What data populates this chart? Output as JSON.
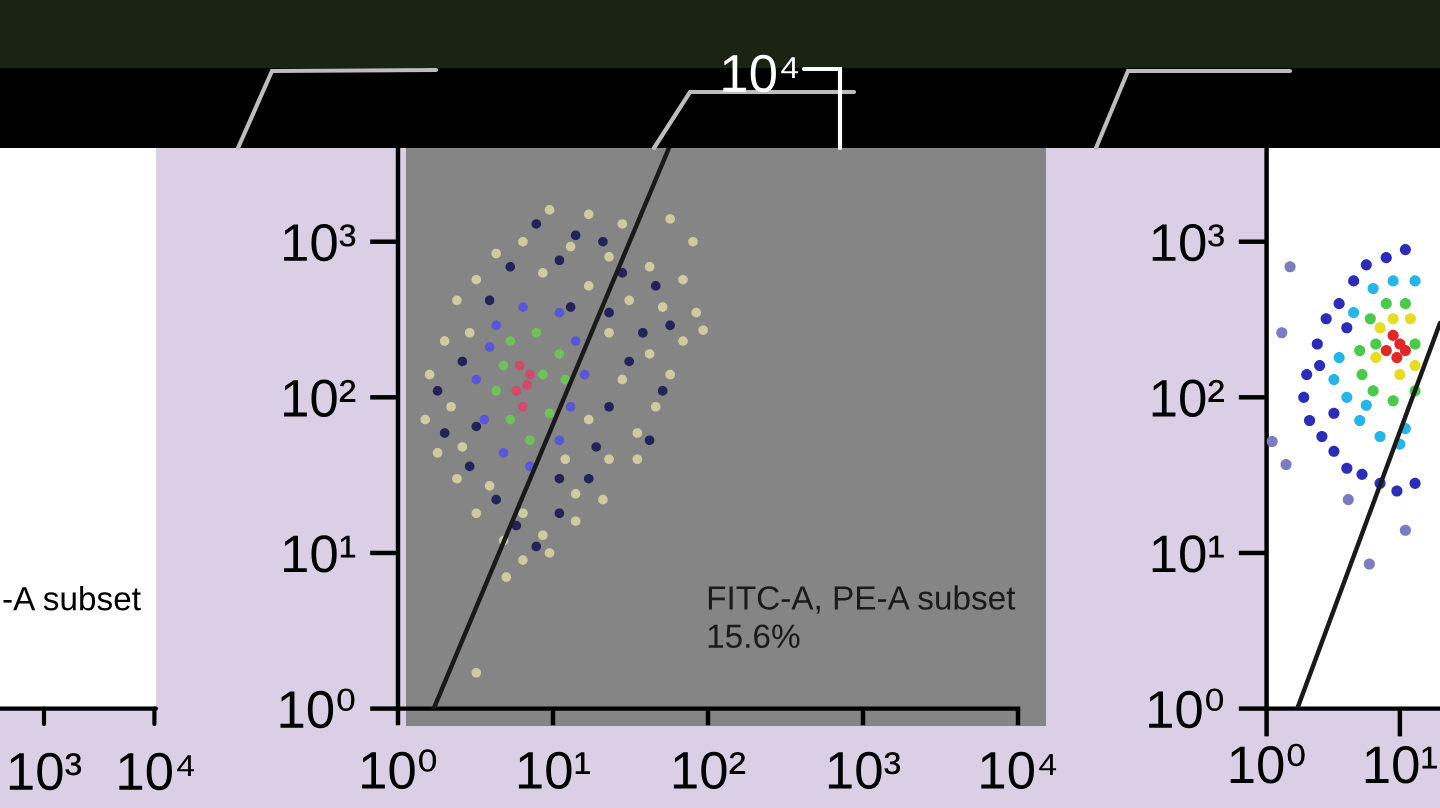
{
  "chart_data": [
    {
      "type": "other",
      "annotations": [
        "10⁴"
      ]
    },
    {
      "type": "other",
      "annotations": [
        "10³",
        "10⁴",
        "-A subset"
      ]
    },
    {
      "type": "scatter",
      "log": "xy",
      "xlim": [
        1,
        10000
      ],
      "ylim": [
        1,
        4000
      ],
      "xticks": [
        {
          "value": 1,
          "label": "10⁰"
        },
        {
          "value": 10,
          "label": "10¹"
        },
        {
          "value": 100,
          "label": "10²"
        },
        {
          "value": 1000,
          "label": "10³"
        },
        {
          "value": 10000,
          "label": "10⁴"
        }
      ],
      "yticks": [
        {
          "value": 1,
          "label": "10⁰"
        },
        {
          "value": 10,
          "label": "10¹"
        },
        {
          "value": 100,
          "label": "10²"
        },
        {
          "value": 1000,
          "label": "10³"
        }
      ],
      "annotations": [
        "FITC-A, PE-A subset\n15.6%"
      ],
      "series": [
        {
          "type": "scatter",
          "marker": "circle",
          "color": "#cfcba0",
          "x": [
            9.5,
            17,
            28,
            57,
            80,
            6.4,
            4.3,
            13,
            23,
            42,
            69,
            84,
            93,
            3.2,
            2.4,
            8.6,
            17,
            31,
            51,
            69,
            2.0,
            1.6,
            2.9,
            23,
            42,
            57,
            1.5,
            2.2,
            28,
            46,
            1.8,
            2.6,
            17,
            35,
            2.4,
            3.9,
            12,
            23,
            35,
            3.2,
            6.4,
            14,
            21,
            4.8,
            8.6,
            14,
            6.4,
            9.5,
            5.0,
            3.2
          ],
          "values": [
            1600,
            1500,
            1300,
            1400,
            1000,
            1000,
            840,
            930,
            800,
            690,
            570,
            350,
            270,
            570,
            420,
            630,
            520,
            420,
            380,
            230,
            230,
            140,
            260,
            260,
            190,
            140,
            72,
            87,
            130,
            87,
            44,
            48,
            72,
            59,
            30,
            27,
            40,
            40,
            40,
            18,
            18,
            24,
            22,
            12,
            13,
            16,
            9.0,
            10,
            7.0,
            1.7
          ]
        },
        {
          "type": "scatter",
          "marker": "circle",
          "color": "#23235a",
          "x": [
            7.8,
            14,
            21,
            5.3,
            11,
            28,
            46,
            3.9,
            13,
            23,
            57,
            2.6,
            38,
            31,
            1.8,
            51,
            3.2,
            23,
            2.0,
            42,
            2.9,
            19,
            4.3,
            11,
            17,
            5.8,
            11,
            7.8
          ],
          "values": [
            1300,
            1100,
            1000,
            690,
            760,
            630,
            520,
            420,
            380,
            350,
            290,
            170,
            260,
            170,
            110,
            110,
            65,
            87,
            59,
            53,
            36,
            48,
            22,
            30,
            30,
            15,
            18,
            11
          ]
        },
        {
          "type": "scatter",
          "marker": "circle",
          "color": "#5b56d6",
          "x": [
            4.3,
            6.4,
            11,
            14,
            16,
            13,
            11,
            7.1,
            4.8,
            3.6,
            3.2,
            3.9
          ],
          "values": [
            290,
            380,
            350,
            230,
            140,
            87,
            53,
            36,
            44,
            72,
            130,
            210
          ]
        },
        {
          "type": "scatter",
          "marker": "circle",
          "color": "#6fc25a",
          "x": [
            5.3,
            7.8,
            11,
            12,
            9.5,
            7.1,
            5.3,
            4.3,
            4.8,
            8.6
          ],
          "values": [
            230,
            260,
            190,
            130,
            79,
            53,
            72,
            110,
            160,
            140
          ]
        },
        {
          "type": "scatter",
          "marker": "circle",
          "color": "#cf4b6e",
          "x": [
            6.1,
            6.8,
            6.4,
            5.8,
            7.1
          ],
          "values": [
            160,
            120,
            87,
            110,
            140
          ]
        },
        {
          "type": "line",
          "color": "#1a1a1a",
          "x": [
            1.7,
            56
          ],
          "values": [
            1,
            4000
          ]
        }
      ]
    },
    {
      "type": "scatter",
      "log": "xy",
      "xlim": [
        1,
        20
      ],
      "ylim": [
        1,
        4000
      ],
      "xticks": [
        {
          "value": 1,
          "label": "10⁰"
        },
        {
          "value": 10,
          "label": "10¹"
        }
      ],
      "yticks": [
        {
          "value": 1,
          "label": "10⁰"
        },
        {
          "value": 10,
          "label": "10¹"
        },
        {
          "value": 100,
          "label": "10²"
        },
        {
          "value": 1000,
          "label": "10³"
        }
      ],
      "series": [
        {
          "type": "scatter",
          "marker": "circle",
          "color": "#7c7cc0",
          "x": [
            1.5,
            1.3,
            1.1,
            1.4,
            5.9,
            11,
            4.1
          ],
          "values": [
            690,
            260,
            52,
            37,
            8.5,
            14,
            22
          ]
        },
        {
          "type": "scatter",
          "marker": "circle",
          "color": "#2c2cb4",
          "x": [
            1.9,
            2.0,
            2.1,
            2.4,
            2.6,
            2.8,
            3.2,
            3.5,
            4.0,
            4.5,
            5.2,
            5.6,
            7.1,
            7.9,
            9.5,
            11,
            13,
            2.5,
            3.2,
            4.0
          ],
          "values": [
            100,
            140,
            71,
            220,
            56,
            320,
            45,
            400,
            35,
            560,
            32,
            710,
            28,
            790,
            25,
            890,
            28,
            160,
            79,
            280
          ]
        },
        {
          "type": "scatter",
          "marker": "circle",
          "color": "#28b4e6",
          "x": [
            3.5,
            4.0,
            4.5,
            5.0,
            6.3,
            7.1,
            8.9,
            11,
            13,
            3.2,
            5.6,
            10
          ],
          "values": [
            180,
            100,
            350,
            71,
            500,
            56,
            560,
            63,
            560,
            130,
            89,
            50
          ]
        },
        {
          "type": "scatter",
          "marker": "circle",
          "color": "#4cc84c",
          "x": [
            5.0,
            5.2,
            6.0,
            6.3,
            7.9,
            8.9,
            11,
            13,
            6.6,
            13
          ],
          "values": [
            200,
            140,
            320,
            110,
            400,
            95,
            400,
            110,
            220,
            220
          ]
        },
        {
          "type": "scatter",
          "marker": "circle",
          "color": "#e6dc28",
          "x": [
            6.6,
            7.1,
            8.9,
            10,
            12,
            13
          ],
          "values": [
            180,
            280,
            320,
            140,
            320,
            160
          ]
        },
        {
          "type": "scatter",
          "marker": "circle",
          "color": "#e02828",
          "x": [
            7.9,
            8.9,
            10,
            11,
            9.5
          ],
          "values": [
            200,
            250,
            220,
            200,
            180
          ]
        },
        {
          "type": "line",
          "color": "#1a1a1a",
          "x": [
            1.7,
            20
          ],
          "values": [
            1,
            300
          ]
        }
      ]
    }
  ]
}
